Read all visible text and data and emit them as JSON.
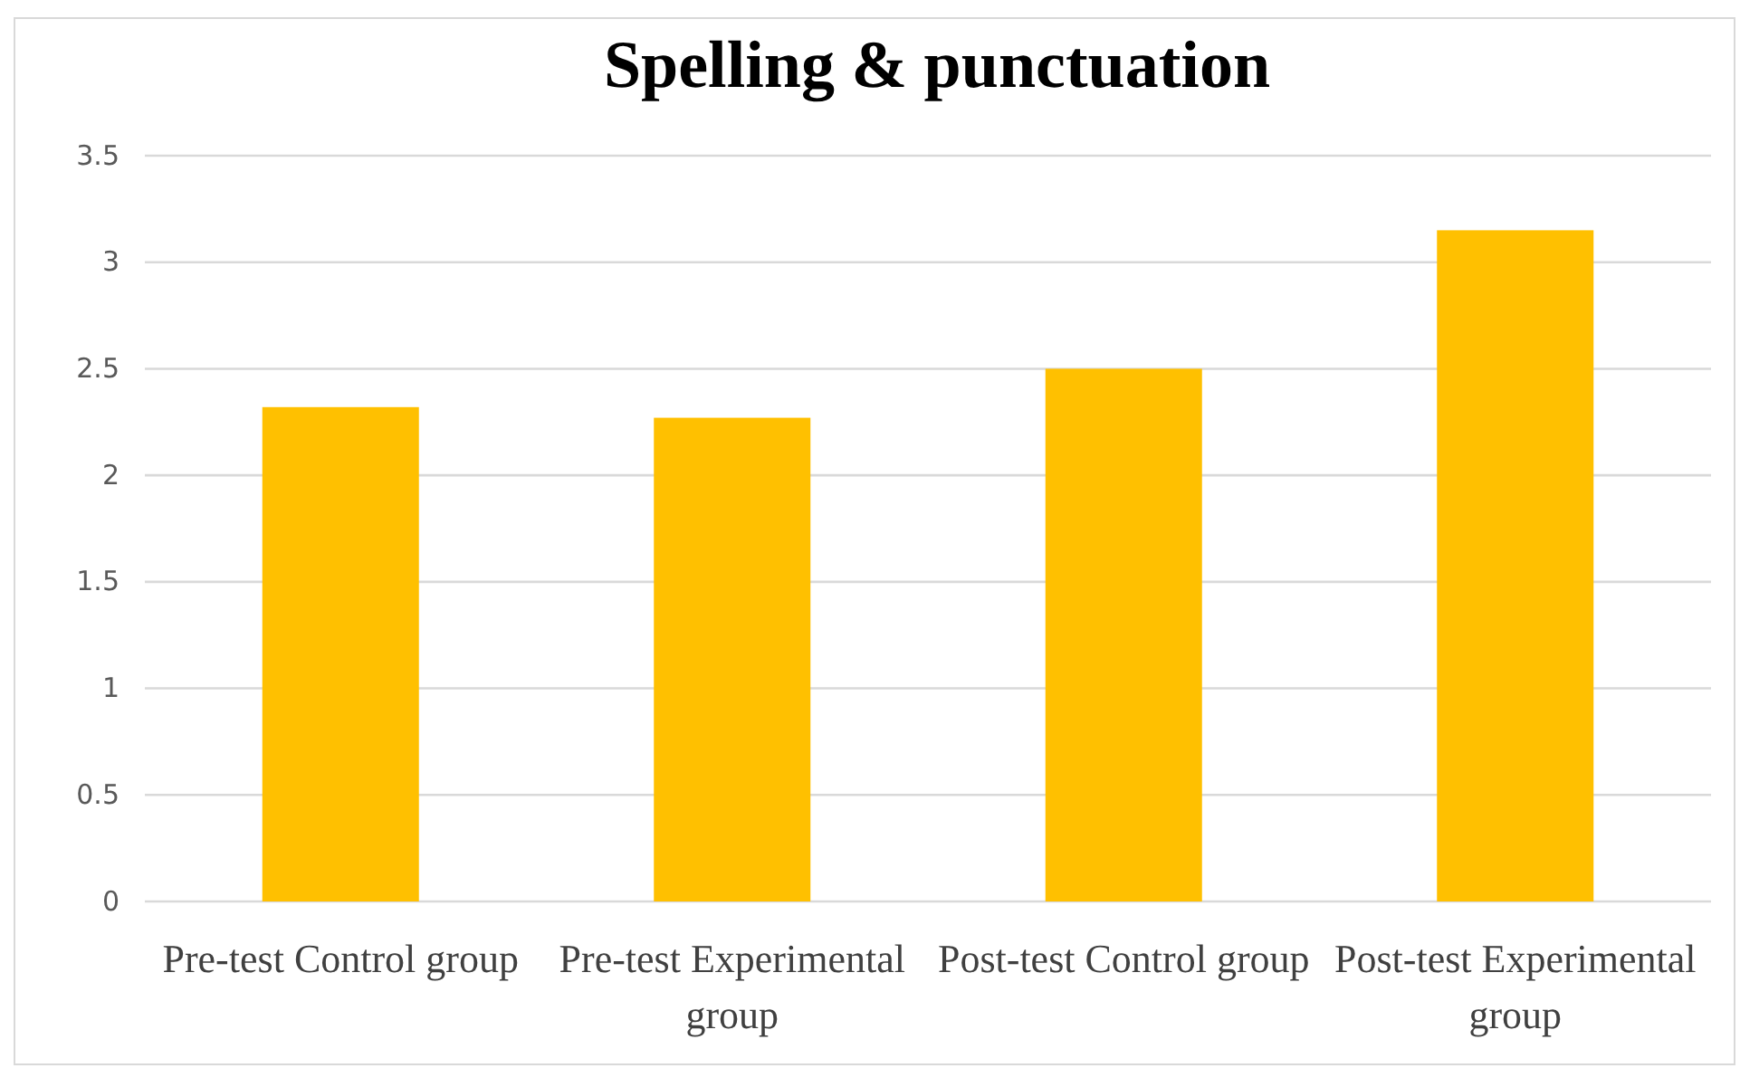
{
  "chart_data": {
    "type": "bar",
    "title": "Spelling & punctuation",
    "categories": [
      "Pre-test Control group",
      "Pre-test Experimental group",
      "Post-test Control group",
      "Post-test Experimental group"
    ],
    "values": [
      2.32,
      2.27,
      2.5,
      3.15
    ],
    "color": "#ffc000",
    "ylim": [
      0,
      3.5
    ],
    "yticks": [
      0,
      0.5,
      1,
      1.5,
      2,
      2.5,
      3,
      3.5
    ],
    "grid": "y"
  }
}
